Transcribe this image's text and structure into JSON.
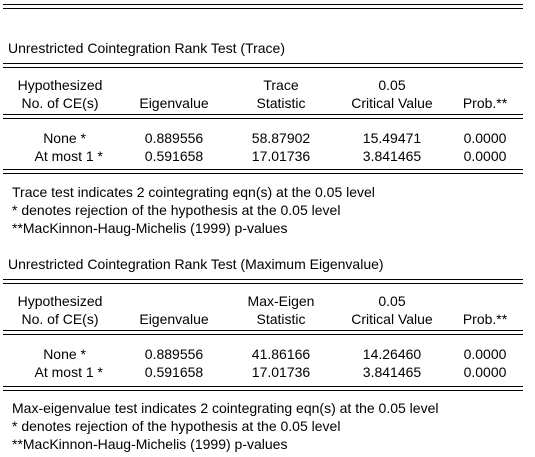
{
  "trace": {
    "title": "Unrestricted Cointegration Rank Test (Trace)",
    "headers": {
      "hyp_line1": "Hypothesized",
      "hyp_line2": "No. of CE(s)",
      "eigenvalue": "Eigenvalue",
      "stat_line1": "Trace",
      "stat_line2": "Statistic",
      "cv_line1": "0.05",
      "cv_line2": "Critical Value",
      "prob": "Prob.**"
    },
    "rows": [
      {
        "hyp": "None *",
        "eigen": "0.889556",
        "stat": "58.87902",
        "cv": "15.49471",
        "prob": "0.0000"
      },
      {
        "hyp": "At most 1 *",
        "eigen": "0.591658",
        "stat": "17.01736",
        "cv": "3.841465",
        "prob": "0.0000"
      }
    ],
    "notes": [
      "Trace test indicates 2 cointegrating eqn(s) at the 0.05 level",
      "* denotes rejection of the hypothesis at the 0.05 level",
      "**MacKinnon-Haug-Michelis (1999) p-values"
    ]
  },
  "maxeig": {
    "title": "Unrestricted Cointegration Rank Test (Maximum Eigenvalue)",
    "headers": {
      "hyp_line1": "Hypothesized",
      "hyp_line2": "No. of CE(s)",
      "eigenvalue": "Eigenvalue",
      "stat_line1": "Max-Eigen",
      "stat_line2": "Statistic",
      "cv_line1": "0.05",
      "cv_line2": "Critical Value",
      "prob": "Prob.**"
    },
    "rows": [
      {
        "hyp": "None *",
        "eigen": "0.889556",
        "stat": "41.86166",
        "cv": "14.26460",
        "prob": "0.0000"
      },
      {
        "hyp": "At most 1 *",
        "eigen": "0.591658",
        "stat": "17.01736",
        "cv": "3.841465",
        "prob": "0.0000"
      }
    ],
    "notes": [
      "Max-eigenvalue test indicates 2 cointegrating eqn(s) at the 0.05 level",
      "* denotes rejection of the hypothesis at the 0.05 level",
      "**MacKinnon-Haug-Michelis (1999) p-values"
    ]
  }
}
